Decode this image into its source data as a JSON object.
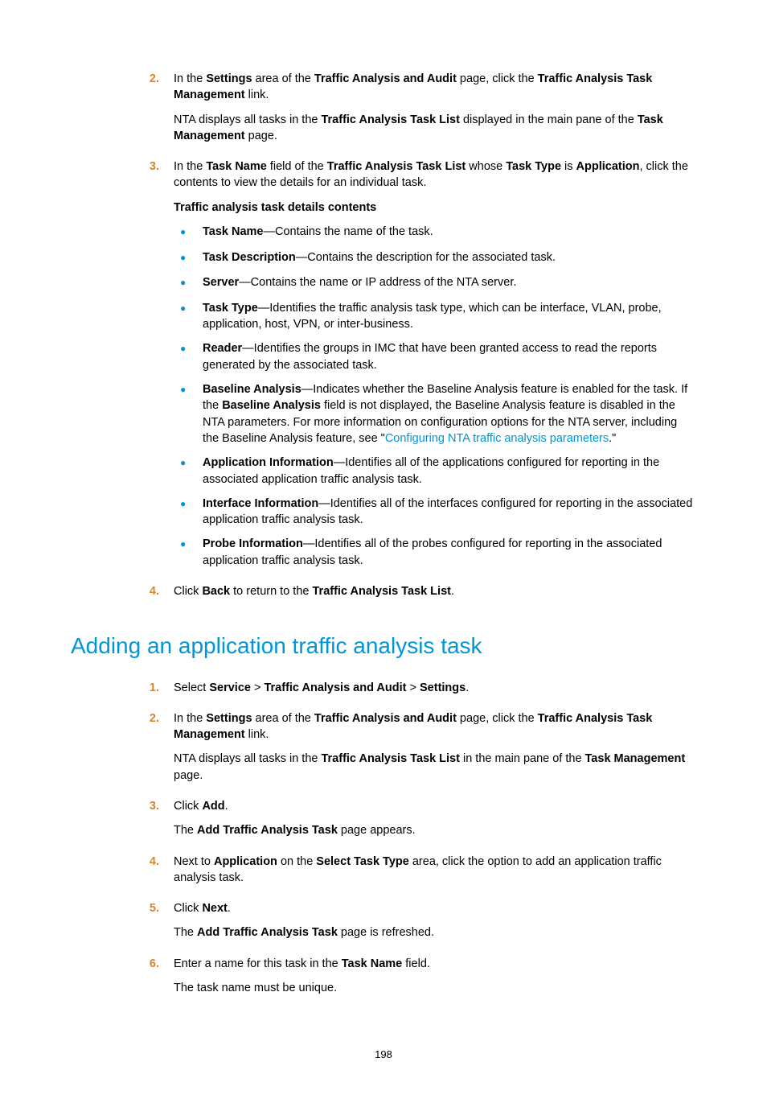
{
  "colors": {
    "accent_orange": "#d7852a",
    "accent_blue": "#0096d6",
    "body_text": "#000000",
    "background": "#ffffff"
  },
  "typography": {
    "body_fontsize_pt": 11,
    "heading_fontsize_pt": 21,
    "font_family": "Arial"
  },
  "page_number": "198",
  "section1": {
    "steps": [
      {
        "num": "2.",
        "para1_parts": [
          "In the ",
          "Settings",
          " area of the ",
          "Traffic Analysis and Audit",
          " page, click the ",
          "Traffic Analysis Task Management",
          " link."
        ],
        "para2_parts": [
          "NTA displays all tasks in the ",
          "Traffic Analysis Task List",
          " displayed in the main pane of the ",
          "Task Management",
          " page."
        ]
      },
      {
        "num": "3.",
        "para1_parts": [
          "In the ",
          "Task Name",
          " field of the ",
          "Traffic Analysis Task List",
          " whose ",
          "Task Type",
          " is ",
          "Application",
          ", click the contents to view the details for an individual task."
        ],
        "sub_heading": "Traffic analysis task details contents",
        "bullets": [
          {
            "term": "Task Name",
            "rest": "—Contains the name of the task."
          },
          {
            "term": "Task Description",
            "rest": "—Contains the description for the associated task."
          },
          {
            "term": "Server",
            "rest": "—Contains the name or IP address of the NTA server."
          },
          {
            "term": "Task Type",
            "rest": "—Identifies the traffic analysis task type, which can be interface, VLAN, probe, application, host, VPN, or inter-business."
          },
          {
            "term": "Reader",
            "rest": "—Identifies the groups in IMC that have been granted access to read the reports generated by the associated task."
          },
          {
            "term": "Baseline Analysis",
            "rest_pre": "—Indicates whether the Baseline Analysis feature is enabled for the task. If the ",
            "bold_inline": "Baseline Analysis",
            "rest_mid": " field is not displayed, the Baseline Analysis feature is disabled in the NTA parameters. For more information on configuration options for the NTA server, including the Baseline Analysis feature, see \"",
            "link": "Configuring NTA traffic analysis parameters",
            "rest_post": ".\""
          },
          {
            "term": "Application Information",
            "rest": "—Identifies all of the applications configured for reporting in the associated application traffic analysis task."
          },
          {
            "term": "Interface Information",
            "rest": "—Identifies all of the interfaces configured for reporting in the associated application traffic analysis task."
          },
          {
            "term": "Probe Information",
            "rest": "—Identifies all of the probes configured for reporting in the associated application traffic analysis task."
          }
        ]
      },
      {
        "num": "4.",
        "para1_parts": [
          "Click ",
          "Back",
          " to return to the ",
          "Traffic Analysis Task List",
          "."
        ]
      }
    ]
  },
  "heading": "Adding an application traffic analysis task",
  "section2": {
    "steps": [
      {
        "num": "1.",
        "para1_parts": [
          "Select ",
          "Service",
          " > ",
          "Traffic Analysis and Audit",
          " > ",
          "Settings",
          "."
        ]
      },
      {
        "num": "2.",
        "para1_parts": [
          "In the ",
          "Settings",
          " area of the ",
          "Traffic Analysis and Audit",
          " page, click the ",
          "Traffic Analysis Task Management",
          " link."
        ],
        "para2_parts": [
          "NTA displays all tasks in the ",
          "Traffic Analysis Task List",
          " in the main pane of the ",
          "Task Management",
          " page."
        ]
      },
      {
        "num": "3.",
        "para1_parts": [
          "Click ",
          "Add",
          "."
        ],
        "para2_parts": [
          "The ",
          "Add Traffic Analysis Task",
          " page appears."
        ]
      },
      {
        "num": "4.",
        "para1_parts": [
          "Next to ",
          "Application",
          " on the ",
          "Select Task Type",
          " area, click the option to add an application traffic analysis task."
        ]
      },
      {
        "num": "5.",
        "para1_parts": [
          "Click ",
          "Next",
          "."
        ],
        "para2_parts": [
          "The ",
          "Add Traffic Analysis Task",
          " page is refreshed."
        ]
      },
      {
        "num": "6.",
        "para1_parts": [
          "Enter a name for this task in the ",
          "Task Name",
          " field."
        ],
        "para2_plain": "The task name must be unique."
      }
    ]
  }
}
